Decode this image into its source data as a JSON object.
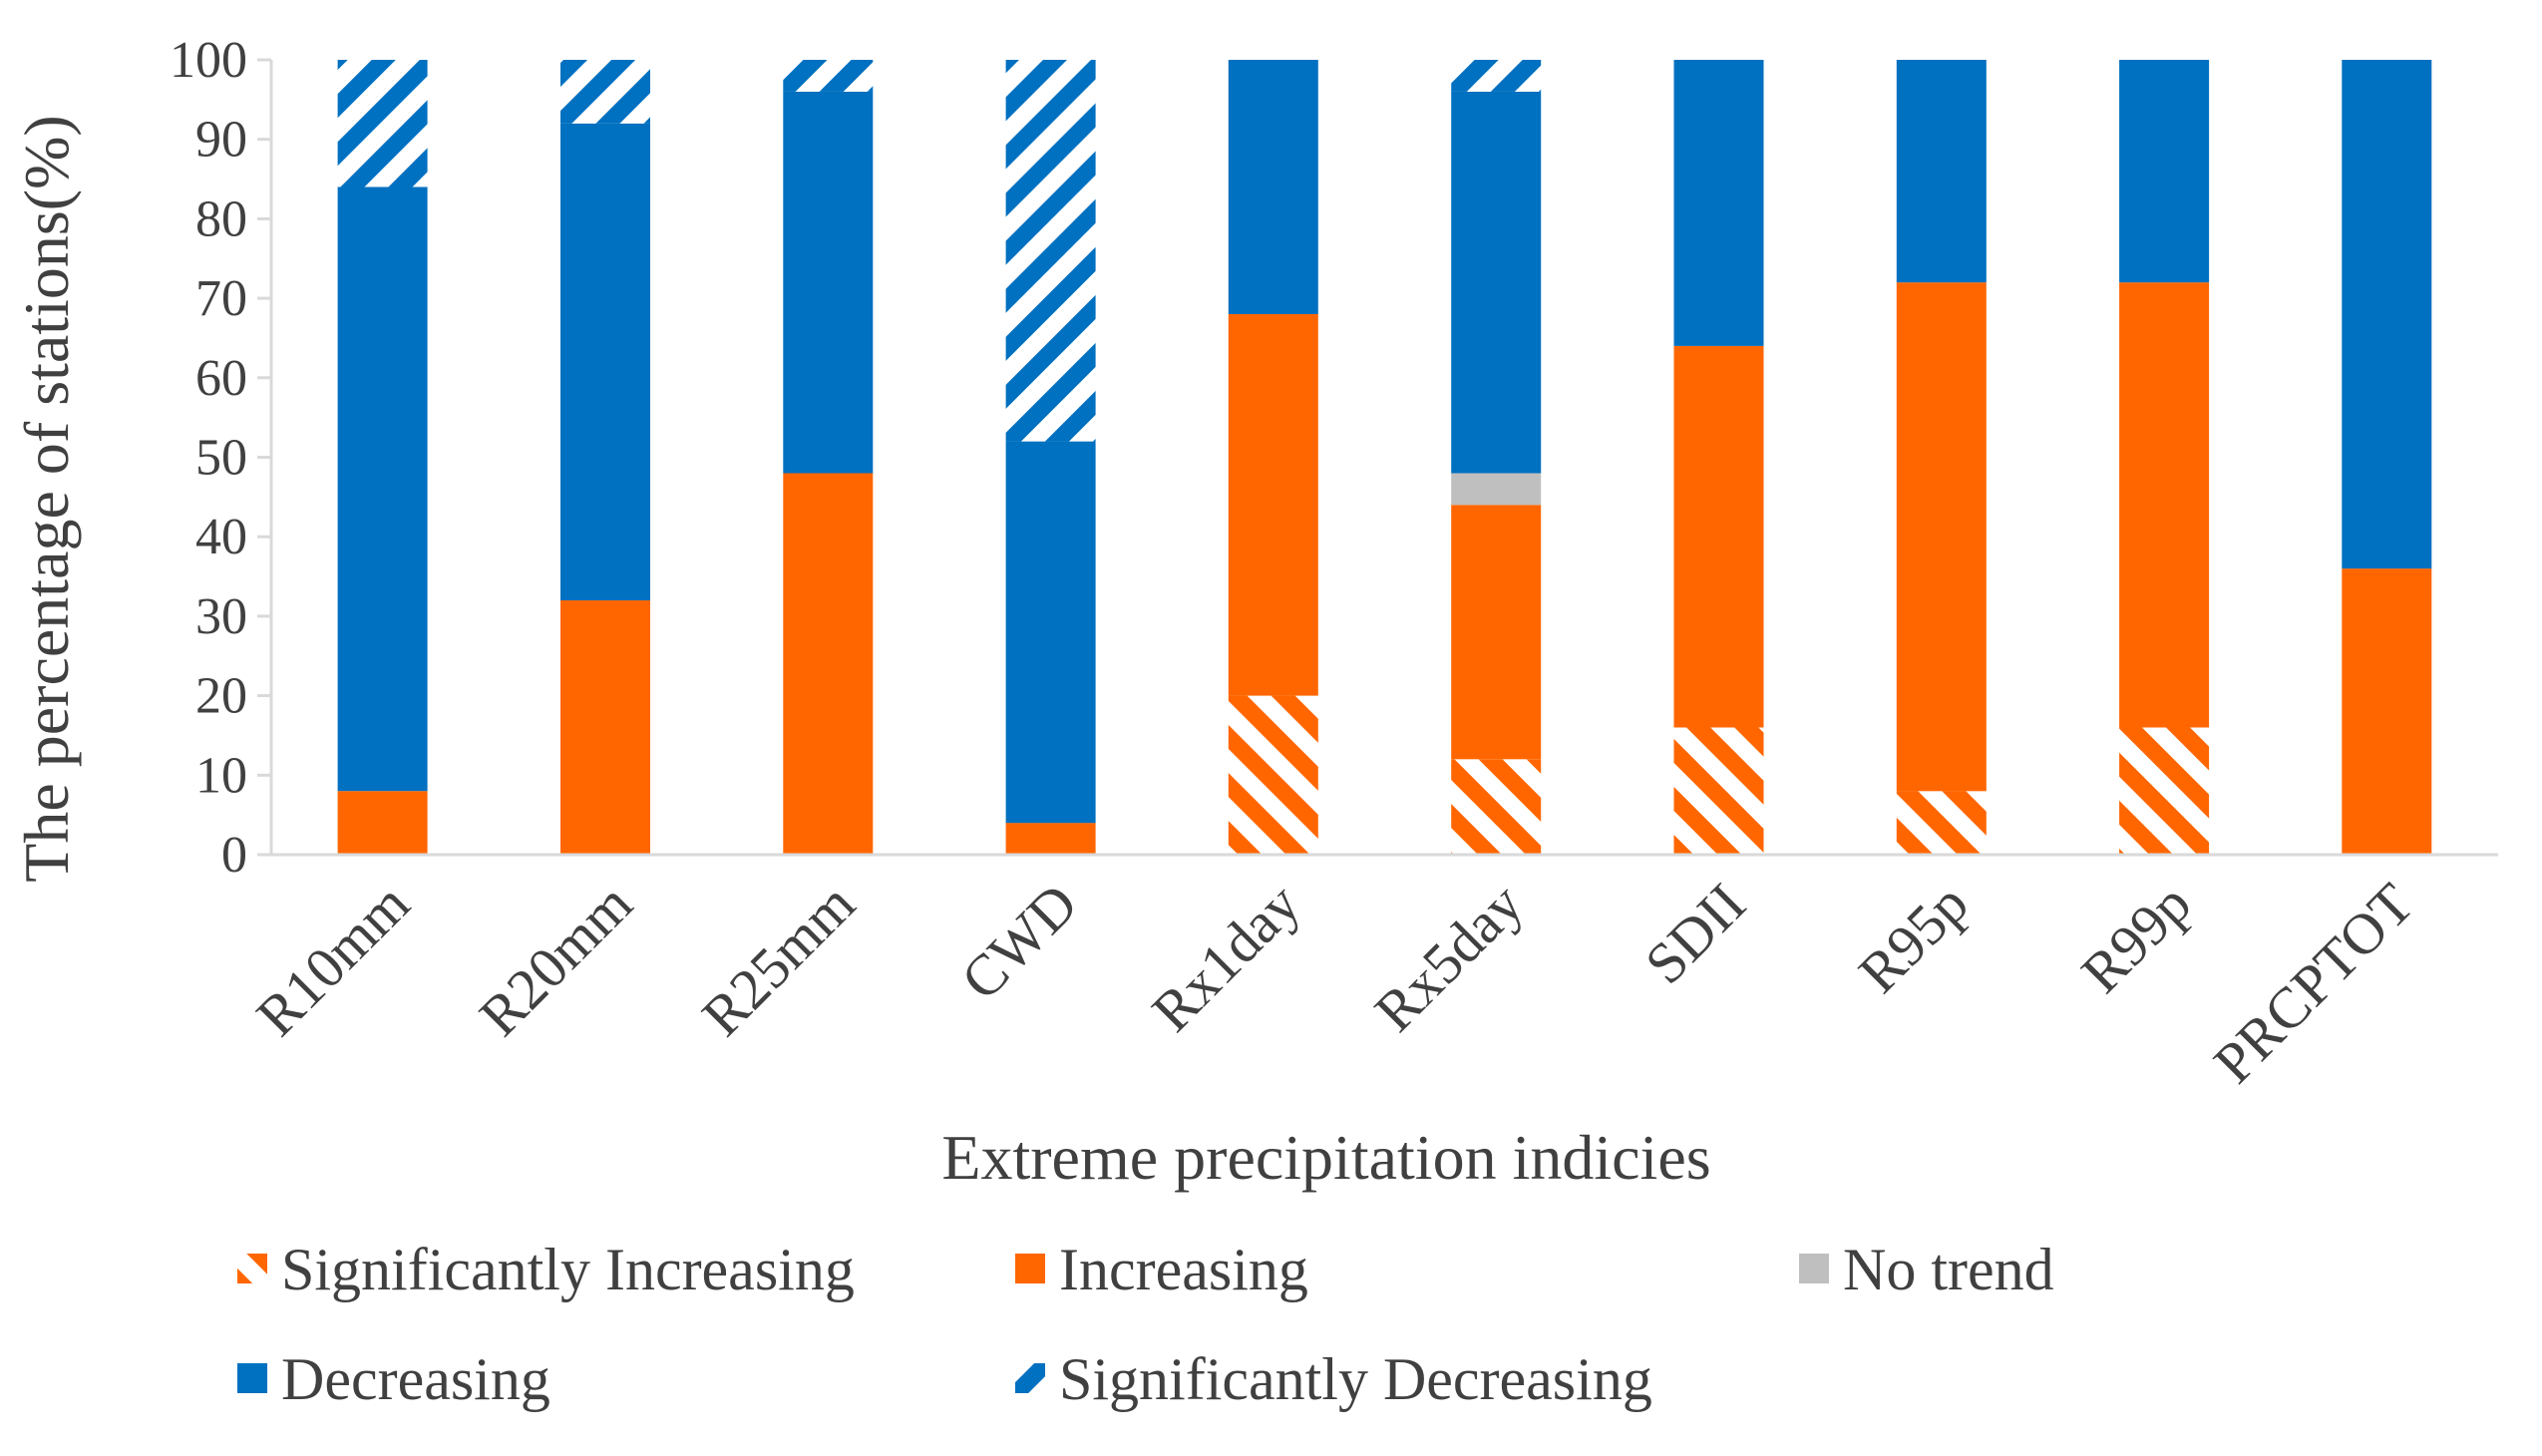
{
  "colors": {
    "sig_increasing": "#FF6600",
    "increasing": "#FF6600",
    "no_trend": "#BFBFBF",
    "decreasing": "#0070C0",
    "sig_decreasing": "#0070C0",
    "axis": "#D9D9D9",
    "text": "#404040"
  },
  "chart_data": {
    "type": "bar",
    "stacked": true,
    "title": "",
    "xlabel": "Extreme precipitation indicies",
    "ylabel": "The percentage of stations(%)",
    "ylim": [
      0,
      100
    ],
    "yticks": [
      0,
      10,
      20,
      30,
      40,
      50,
      60,
      70,
      80,
      90,
      100
    ],
    "grid": false,
    "legend_position": "bottom",
    "categories": [
      "R10mm",
      "R20mm",
      "R25mm",
      "CWD",
      "Rx1day",
      "Rx5day",
      "SDII",
      "R95p",
      "R99p",
      "PRCPTOT"
    ],
    "series": [
      {
        "name": "Significantly Increasing",
        "key": "sig_increasing",
        "pattern": "hatch",
        "values": [
          0,
          0,
          0,
          0,
          20,
          12,
          16,
          8,
          16,
          0
        ]
      },
      {
        "name": "Increasing",
        "key": "increasing",
        "pattern": "solid",
        "values": [
          8,
          32,
          48,
          4,
          48,
          32,
          48,
          64,
          56,
          36
        ]
      },
      {
        "name": "No trend",
        "key": "no_trend",
        "pattern": "solid",
        "values": [
          0,
          0,
          0,
          0,
          0,
          4,
          0,
          0,
          0,
          0
        ]
      },
      {
        "name": "Decreasing",
        "key": "decreasing",
        "pattern": "solid",
        "values": [
          76,
          60,
          48,
          48,
          32,
          48,
          36,
          28,
          28,
          64
        ]
      },
      {
        "name": "Significantly Decreasing",
        "key": "sig_decreasing",
        "pattern": "hatch",
        "values": [
          16,
          8,
          4,
          48,
          0,
          4,
          0,
          0,
          0,
          0
        ]
      }
    ]
  }
}
